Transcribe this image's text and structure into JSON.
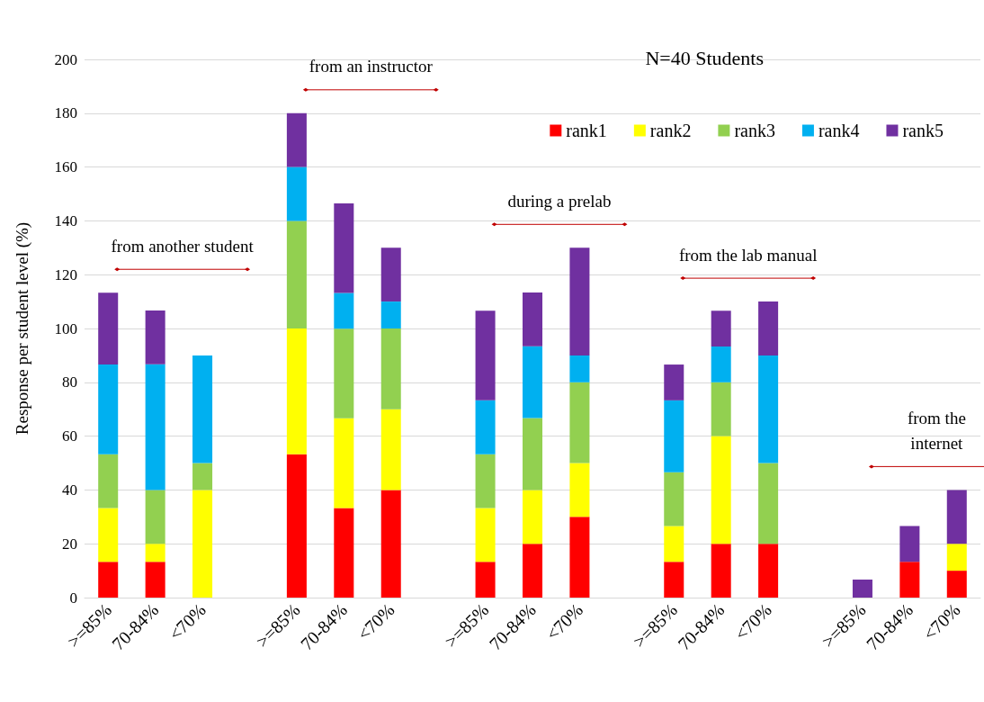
{
  "chart_data": {
    "type": "bar",
    "title": "N=40 Students",
    "ylabel": "Response per student level (%)",
    "categories": [
      ">=85%",
      "70-84%",
      "<70%",
      null,
      ">=85%",
      "70-84%",
      "<70%",
      null,
      ">=85%",
      "70-84%",
      "<70%",
      null,
      ">=85%",
      "70-84%",
      "<70%",
      null,
      ">=85%",
      "70-84%",
      "<70%"
    ],
    "stacked": true,
    "series": [
      {
        "name": "rank1",
        "color": "#ff0000",
        "values": [
          13.3,
          13.3,
          0,
          null,
          53.3,
          33.3,
          40,
          null,
          13.3,
          20,
          30,
          null,
          13.3,
          20,
          20,
          null,
          0,
          13.3,
          10
        ]
      },
      {
        "name": "rank2",
        "color": "#ffff00",
        "values": [
          20,
          6.7,
          40,
          null,
          46.7,
          33.3,
          30,
          null,
          20,
          20,
          20,
          null,
          13.3,
          40,
          0,
          null,
          0,
          0,
          10
        ]
      },
      {
        "name": "rank3",
        "color": "#92d050",
        "values": [
          20,
          20,
          10,
          null,
          40,
          33.3,
          30,
          null,
          20,
          26.7,
          30,
          null,
          20,
          20,
          30,
          null,
          0,
          0,
          0
        ]
      },
      {
        "name": "rank4",
        "color": "#00b0f0",
        "values": [
          33.3,
          46.7,
          40,
          null,
          20,
          13.3,
          10,
          null,
          20,
          26.7,
          10,
          null,
          26.7,
          13.3,
          40,
          null,
          0,
          0,
          0
        ]
      },
      {
        "name": "rank5",
        "color": "#7030a0",
        "values": [
          26.7,
          20,
          0,
          null,
          20,
          33.3,
          20,
          null,
          33.3,
          20,
          40,
          null,
          13.3,
          13.3,
          20,
          null,
          6.7,
          13.3,
          20
        ]
      }
    ],
    "annotations": [
      "from another student",
      "from an instructor",
      "during a prelab",
      "from the lab manual",
      "from the\ninternet"
    ],
    "ylim": [
      0,
      200
    ],
    "yticks": [
      0,
      20,
      40,
      60,
      80,
      100,
      120,
      140,
      160,
      180,
      200
    ],
    "grid": "y",
    "legend": "top right"
  }
}
